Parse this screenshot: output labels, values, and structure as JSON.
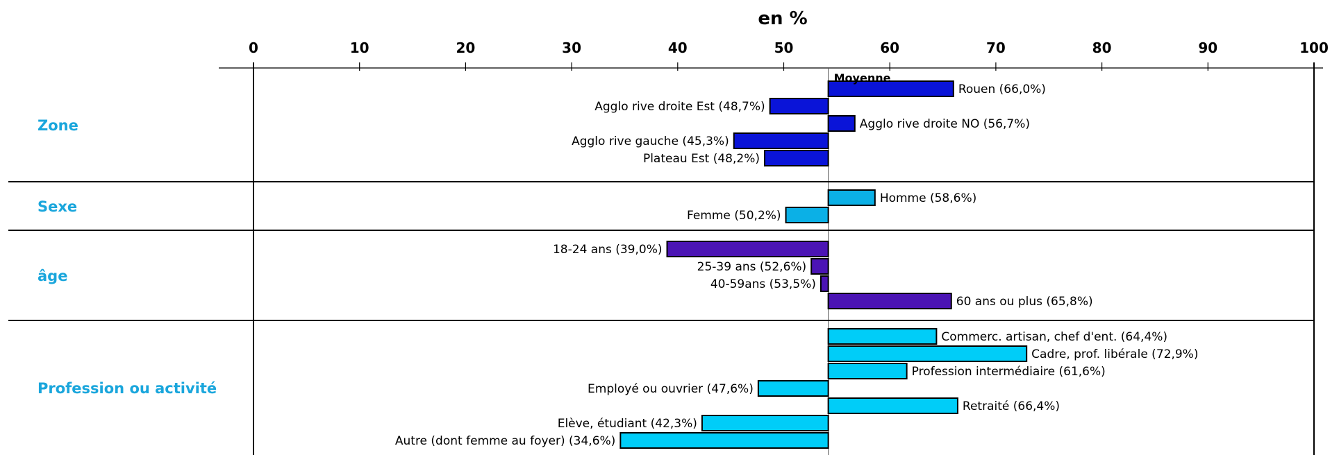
{
  "chart_data": {
    "type": "bar",
    "orientation": "horizontal",
    "unit_label": "en %",
    "xlim": [
      0,
      100
    ],
    "x_ticks": [
      "0",
      "10",
      "20",
      "30",
      "40",
      "50",
      "60",
      "70",
      "80",
      "90",
      "100"
    ],
    "baseline": 54.2,
    "baseline_label": "Moyenne",
    "grid": false,
    "groups": [
      {
        "label": "Zone",
        "color": "#0a14d8",
        "bars": [
          {
            "label": "Rouen",
            "value_text": "(66,0%)",
            "value": 66.0
          },
          {
            "label": "Agglo rive droite Est",
            "value_text": "(48,7%)",
            "value": 48.7
          },
          {
            "label": "Agglo rive droite NO",
            "value_text": "(56,7%)",
            "value": 56.7
          },
          {
            "label": "Agglo rive gauche",
            "value_text": "(45,3%)",
            "value": 45.3
          },
          {
            "label": "Plateau Est",
            "value_text": "(48,2%)",
            "value": 48.2
          }
        ]
      },
      {
        "label": "Sexe",
        "color": "#0bb0e6",
        "bars": [
          {
            "label": "Homme",
            "value_text": "(58,6%)",
            "value": 58.6
          },
          {
            "label": "Femme",
            "value_text": "(50,2%)",
            "value": 50.2
          }
        ]
      },
      {
        "label": "âge",
        "color": "#4b14b4",
        "bars": [
          {
            "label": "18-24 ans",
            "value_text": "(39,0%)",
            "value": 39.0
          },
          {
            "label": "25-39 ans",
            "value_text": "(52,6%)",
            "value": 52.6
          },
          {
            "label": "40-59ans",
            "value_text": "(53,5%)",
            "value": 53.5
          },
          {
            "label": "60 ans ou plus",
            "value_text": "(65,8%)",
            "value": 65.8
          }
        ]
      },
      {
        "label": "Profession ou activité",
        "color": "#00cdf8",
        "bars": [
          {
            "label": "Commerc. artisan, chef d'ent.",
            "value_text": "(64,4%)",
            "value": 64.4
          },
          {
            "label": "Cadre, prof. libérale",
            "value_text": "(72,9%)",
            "value": 72.9
          },
          {
            "label": "Profession intermédiaire",
            "value_text": "(61,6%)",
            "value": 61.6
          },
          {
            "label": "Employé ou ouvrier",
            "value_text": "(47,6%)",
            "value": 47.6
          },
          {
            "label": "Retraité",
            "value_text": "(66,4%)",
            "value": 66.4
          },
          {
            "label": "Elève, étudiant",
            "value_text": "(42,3%)",
            "value": 42.3
          },
          {
            "label": "Autre (dont femme au foyer)",
            "value_text": "(34,6%)",
            "value": 34.6
          }
        ]
      }
    ],
    "colors": {
      "group_label": "#1aa6dc",
      "axis": "#000000",
      "bar_stroke": "#000000"
    }
  }
}
